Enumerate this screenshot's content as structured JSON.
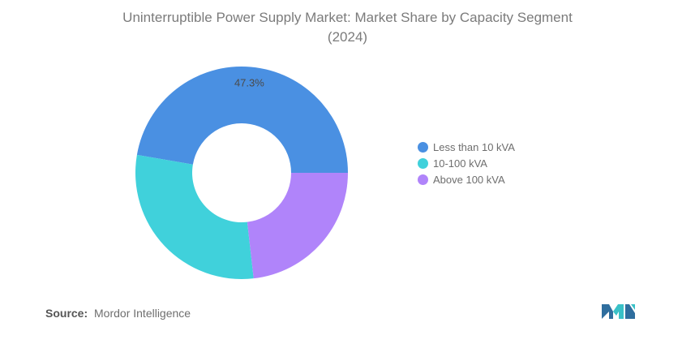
{
  "title_line1": "Uninterruptible Power Supply Market: Market Share by Capacity Segment",
  "title_line2": "(2024)",
  "source_label": "Source:",
  "source_value": "Mordor Intelligence",
  "colors": {
    "less_than_10": "#4a90e2",
    "10_100": "#40d1db",
    "above_100": "#b084fa"
  },
  "chart_data": {
    "type": "pie",
    "subtype": "donut",
    "title": "Uninterruptible Power Supply Market: Market Share by Capacity Segment (2024)",
    "legend_position": "right",
    "series": [
      {
        "name": "Less than 10 kVA",
        "value": 47.3,
        "label": "47.3%",
        "color": "#4a90e2"
      },
      {
        "name": "10-100 kVA",
        "value": 29.5,
        "label": "",
        "color": "#40d1db"
      },
      {
        "name": "Above 100 kVA",
        "value": 23.2,
        "label": "",
        "color": "#b084fa"
      }
    ]
  }
}
